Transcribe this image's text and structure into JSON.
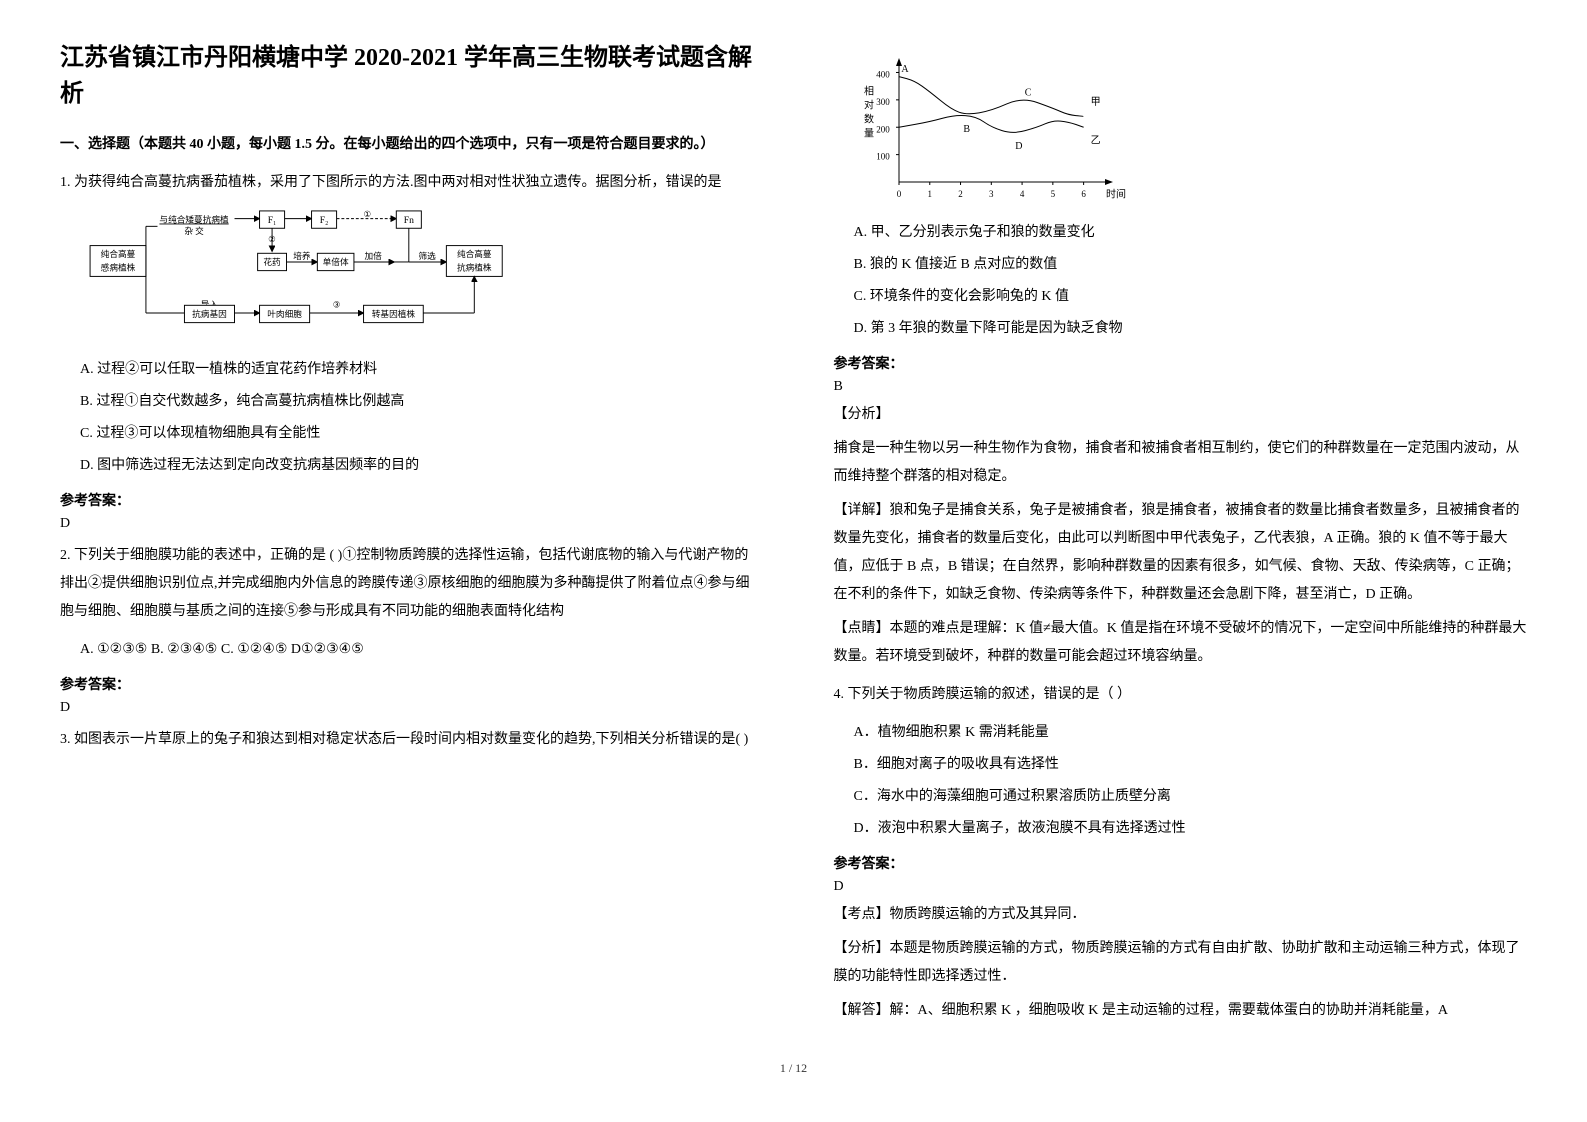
{
  "title": "江苏省镇江市丹阳横塘中学 2020-2021 学年高三生物联考试题含解析",
  "section_heading": "一、选择题（本题共 40 小题，每小题 1.5 分。在每小题给出的四个选项中，只有一项是符合题目要求的。）",
  "q1": {
    "stem": "1. 为获得纯合高蔓抗病番茄植株，采用了下图所示的方法.图中两对相对性状独立遗传。据图分析，错误的是",
    "options": {
      "A": "A.  过程②可以任取一植株的适宜花药作培养材料",
      "B": "B.  过程①自交代数越多，纯合高蔓抗病植株比例越高",
      "C": "C. 过程③可以体现植物细胞具有全能性",
      "D": "D. 图中筛选过程无法达到定向改变抗病基因频率的目的"
    },
    "answer_label": "参考答案：",
    "answer": "D",
    "flowchart": {
      "nodes": {
        "pure_high": "纯合高蔓\n感病植株",
        "cross": "与纯合矮蔓抗病植\n杂 交",
        "f1": "F₁",
        "f2": "F₂",
        "fn": "Fn",
        "anther_label": "花药",
        "culture": "培养",
        "haploid": "单倍体",
        "double": "加倍",
        "select": "筛选",
        "pure_anti": "纯合高蔓\n抗病植株",
        "gene": "抗病基因",
        "import": "导入",
        "leaf": "叶肉细胞",
        "transgenic": "转基因植株",
        "circled1": "①",
        "circled2": "②",
        "circled3": "③"
      }
    }
  },
  "q2": {
    "stem": "  2. 下列关于细胞膜功能的表述中，正确的是 ( )①控制物质跨膜的选择性运输，包括代谢底物的输入与代谢产物的排出②提供细胞识别位点,并完成细胞内外信息的跨膜传递③原核细胞的细胞膜为多种酶提供了附着位点④参与细胞与细胞、细胞膜与基质之间的连接⑤参与形成具有不同功能的细胞表面特化结构",
    "options_line": "A. ①②③⑤        B. ②③④⑤        C. ①②④⑤        D①②③④⑤",
    "answer_label": "参考答案：",
    "answer": "  D"
  },
  "q3": {
    "stem": "3. 如图表示一片草原上的兔子和狼达到相对稳定状态后一段时间内相对数量变化的趋势,下列相关分析错误的是(       )",
    "chart": {
      "ylabel": "相对数量",
      "xlabel": "时间",
      "yticks": [
        100,
        200,
        300,
        400
      ],
      "xticks": [
        0,
        1,
        2,
        3,
        4,
        5,
        6
      ],
      "series": {
        "jia": {
          "label": "甲",
          "points": [
            [
              0,
              385
            ],
            [
              0.5,
              370
            ],
            [
              1,
              330
            ],
            [
              1.7,
              265
            ],
            [
              2.2,
              245
            ],
            [
              3,
              260
            ],
            [
              4,
              310
            ],
            [
              5,
              270
            ],
            [
              5.5,
              245
            ],
            [
              6,
              240
            ]
          ],
          "peak_labels": [
            [
              "A",
              0,
              400
            ],
            [
              "C",
              4,
              313
            ]
          ],
          "trough_labels": [
            [
              "B",
              2.2,
              243
            ]
          ]
        },
        "yi": {
          "label": "乙",
          "points": [
            [
              0,
              200
            ],
            [
              1,
              220
            ],
            [
              1.8,
              245
            ],
            [
              2.5,
              240
            ],
            [
              3,
              200
            ],
            [
              3.7,
              175
            ],
            [
              4.5,
              200
            ],
            [
              5,
              225
            ],
            [
              5.5,
              220
            ],
            [
              6,
              200
            ]
          ],
          "peak_labels": [
            [
              "D",
              3.7,
              173
            ]
          ]
        }
      },
      "xlim": [
        0,
        6.5
      ],
      "ylim": [
        0,
        420
      ]
    },
    "options": {
      "A": "A.  甲、乙分别表示兔子和狼的数量变化",
      "B": "B.  狼的 K 值接近 B 点对应的数值",
      "C": "C.  环境条件的变化会影响兔的 K 值",
      "D": "D.  第 3 年狼的数量下降可能是因为缺乏食物"
    },
    "answer_label": "参考答案：",
    "answer": "B",
    "analysis_label": "【分析】",
    "analysis": "捕食是一种生物以另一种生物作为食物，捕食者和被捕食者相互制约，使它们的种群数量在一定范围内波动，从而维持整个群落的相对稳定。",
    "detail_label": "【详解】",
    "detail": "狼和兔子是捕食关系，兔子是被捕食者，狼是捕食者，被捕食者的数量比捕食者数量多，且被捕食者的数量先变化，捕食者的数量后变化，由此可以判断图中甲代表兔子，乙代表狼，A 正确。狼的 K 值不等于最大值，应低于 B 点，B 错误；在自然界，影响种群数量的因素有很多，如气候、食物、天敌、传染病等，C 正确；在不利的条件下，如缺乏食物、传染病等条件下，种群数量还会急剧下降，甚至消亡，D 正确。",
    "point_label": "【点睛】",
    "point": "本题的难点是理解：K 值≠最大值。K 值是指在环境不受破坏的情况下，一定空间中所能维持的种群最大数量。若环境受到破坏，种群的数量可能会超过环境容纳量。"
  },
  "q4": {
    "stem": "4. 下列关于物质跨膜运输的叙述，错误的是（      ）",
    "options": {
      "A": "A．植物细胞积累 K 需消耗能量",
      "B": "B．细胞对离子的吸收具有选择性",
      "C": "C．海水中的海藻细胞可通过积累溶质防止质壁分离",
      "D": "D．液泡中积累大量离子，故液泡膜不具有选择透过性"
    },
    "answer_label": "参考答案：",
    "answer": "D",
    "test_point": "【考点】物质跨膜运输的方式及其异同．",
    "analysis": "【分析】本题是物质跨膜运输的方式，物质跨膜运输的方式有自由扩散、协助扩散和主动运输三种方式，体现了膜的功能特性即选择透过性．",
    "solve": "【解答】解：A、细胞积累 K ，细胞吸收 K 是主动运输的过程，需要载体蛋白的协助并消耗能量，A"
  },
  "footer": "1 / 12"
}
